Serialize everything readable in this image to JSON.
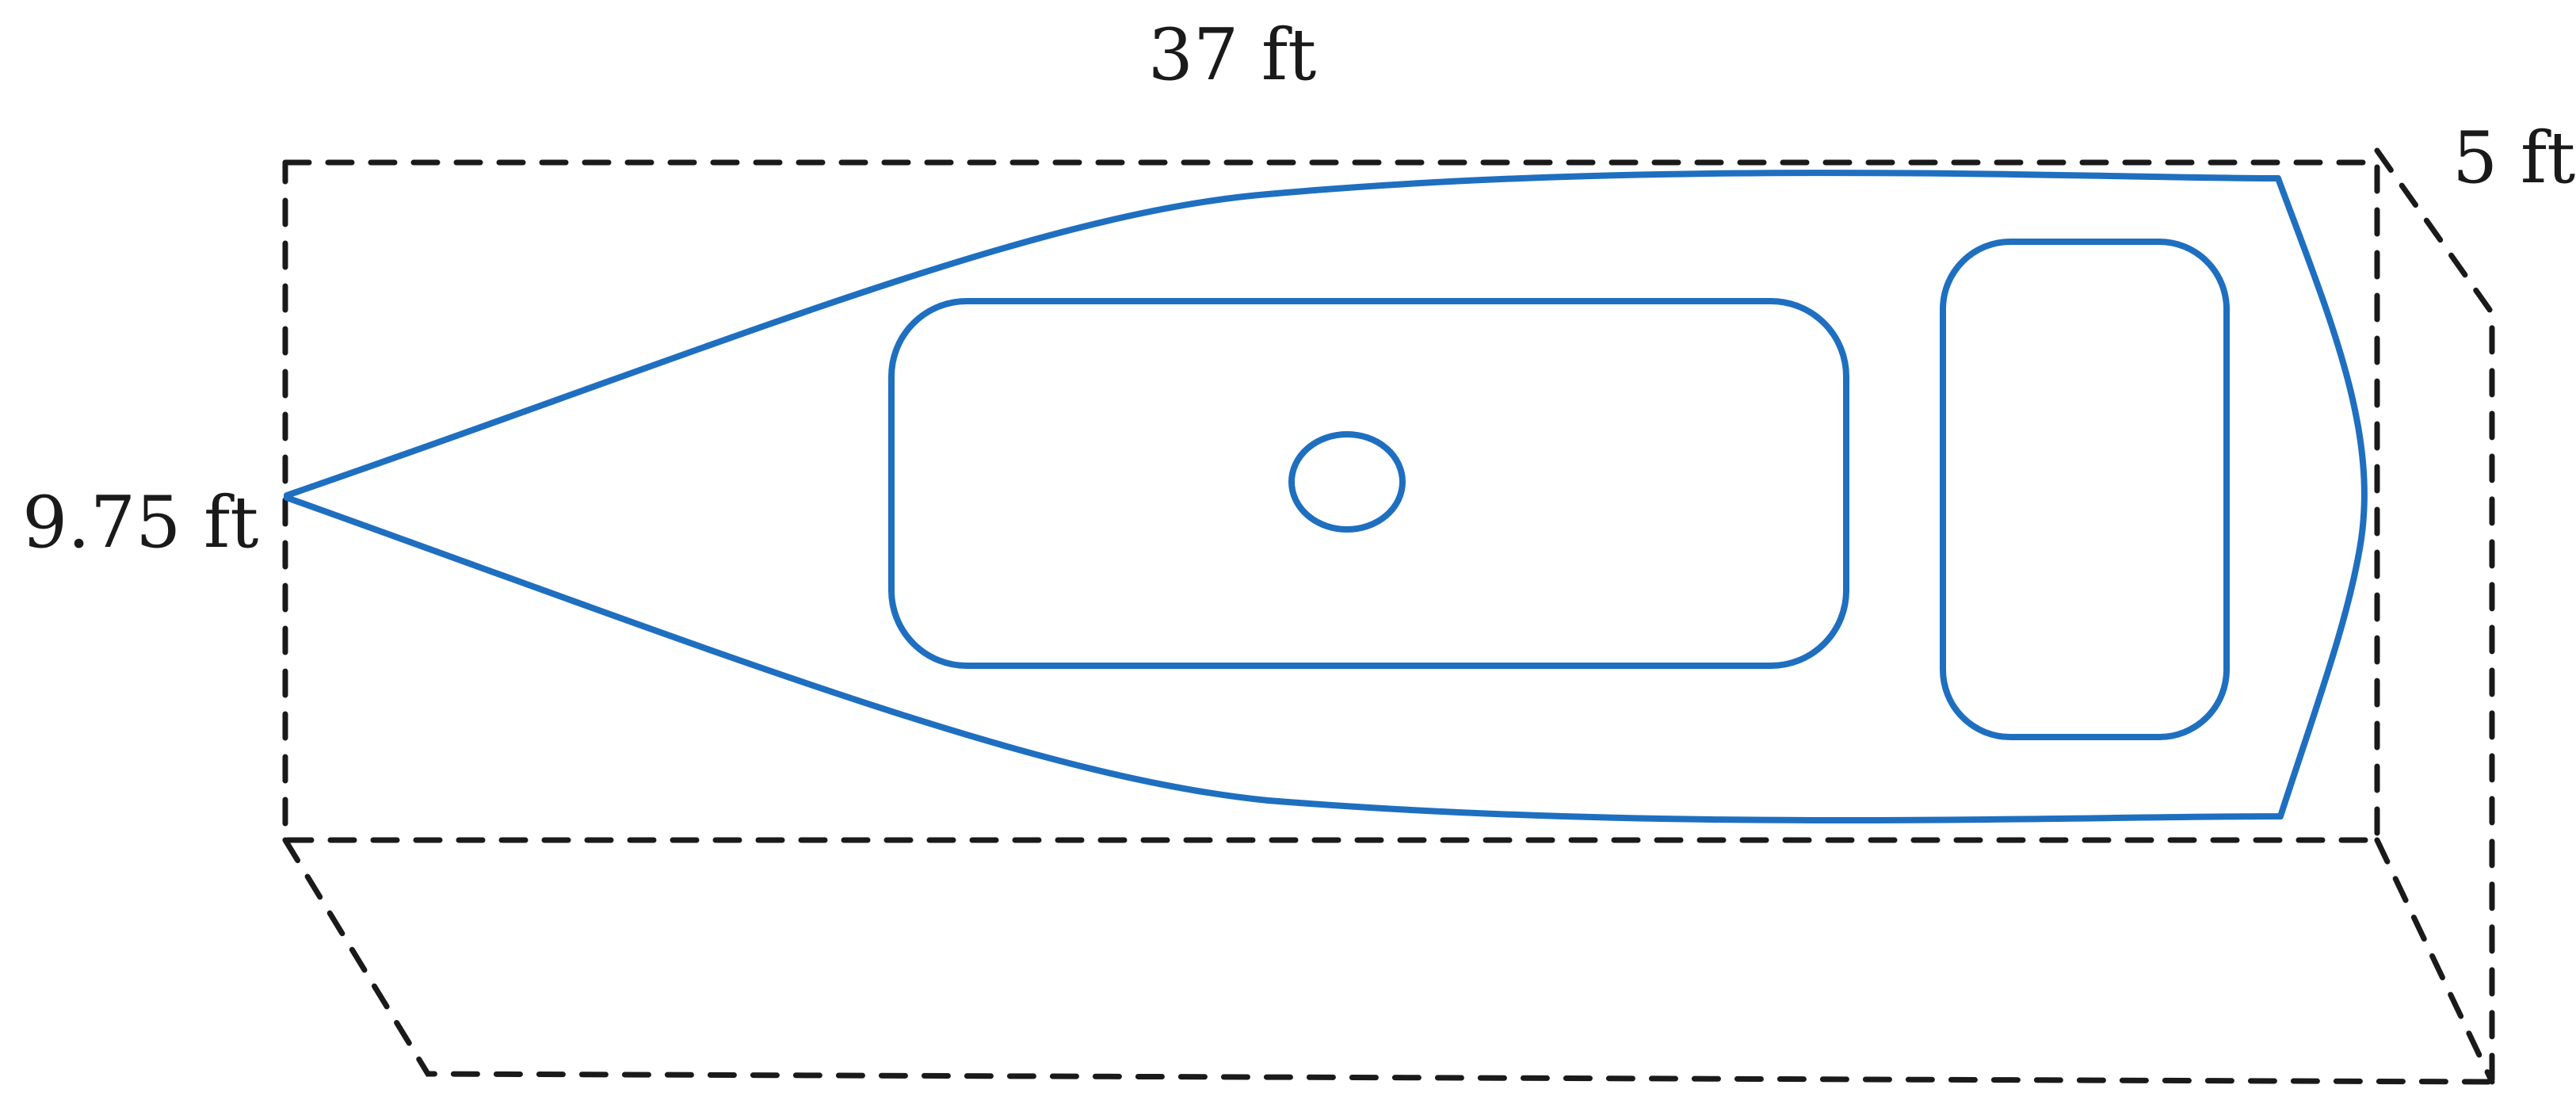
{
  "labels": {
    "length": "37 ft",
    "width": "9.75 ft",
    "height": "5 ft"
  },
  "colors": {
    "boat_outline": "#1f6fc0",
    "box_outline": "#1a1a1a",
    "background": "#ffffff"
  }
}
